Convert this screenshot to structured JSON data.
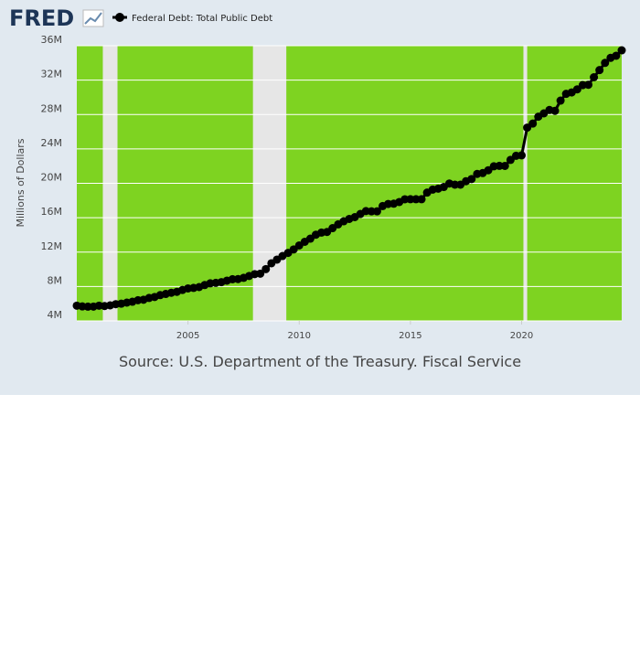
{
  "logo": "FRED",
  "chart_data": {
    "type": "line",
    "y_label": "Millions of Dollars",
    "source": "Source: U.S. Department of the Treasury. Fiscal Service",
    "x": [
      2000,
      2000.25,
      2000.5,
      2000.75,
      2001,
      2001.25,
      2001.5,
      2001.75,
      2002,
      2002.25,
      2002.5,
      2002.75,
      2003,
      2003.25,
      2003.5,
      2003.75,
      2004,
      2004.25,
      2004.5,
      2004.75,
      2005,
      2005.25,
      2005.5,
      2005.75,
      2006,
      2006.25,
      2006.5,
      2006.75,
      2007,
      2007.25,
      2007.5,
      2007.75,
      2008,
      2008.25,
      2008.5,
      2008.75,
      2009,
      2009.25,
      2009.5,
      2009.75,
      2010,
      2010.25,
      2010.5,
      2010.75,
      2011,
      2011.25,
      2011.5,
      2011.75,
      2012,
      2012.25,
      2012.5,
      2012.75,
      2013,
      2013.25,
      2013.5,
      2013.75,
      2014,
      2014.25,
      2014.5,
      2014.75,
      2015,
      2015.25,
      2015.5,
      2015.75,
      2016,
      2016.25,
      2016.5,
      2016.75,
      2017,
      2017.25,
      2017.5,
      2017.75,
      2018,
      2018.25,
      2018.5,
      2018.75,
      2019,
      2019.25,
      2019.5,
      2019.75,
      2020,
      2020.25,
      2020.5,
      2020.75,
      2021,
      2021.25,
      2021.5,
      2021.75,
      2022,
      2022.25,
      2022.5,
      2022.75,
      2023,
      2023.25,
      2023.5,
      2023.75,
      2024,
      2024.25,
      2024.5
    ],
    "series": [
      {
        "name": "Federal Debt: Total Public Debt",
        "color": "#000000",
        "values": [
          5773000,
          5685000,
          5656000,
          5662000,
          5774000,
          5727000,
          5807000,
          5943000,
          6006000,
          6126000,
          6228000,
          6405000,
          6460000,
          6670000,
          6783000,
          6998000,
          7131000,
          7274000,
          7379000,
          7596000,
          7777000,
          7836000,
          7933000,
          8170000,
          8371000,
          8420000,
          8507000,
          8680000,
          8849000,
          8867000,
          9008000,
          9229000,
          9437000,
          9492000,
          10025000,
          10700000,
          11127000,
          11545000,
          11910000,
          12311000,
          12773000,
          13202000,
          13562000,
          14025000,
          14270000,
          14343000,
          14790000,
          15223000,
          15582000,
          15856000,
          16066000,
          16433000,
          16771000,
          16738000,
          16738000,
          17352000,
          17601000,
          17632000,
          17824000,
          18141000,
          18152000,
          18152000,
          18151000,
          18922000,
          19264000,
          19381000,
          19573000,
          19977000,
          19847000,
          19845000,
          20245000,
          20493000,
          21090000,
          21195000,
          21516000,
          21974000,
          22028000,
          22023000,
          22719000,
          23201000,
          23250000,
          26477000,
          26945000,
          27748000,
          28133000,
          28529000,
          28428000,
          29617000,
          30401000,
          30568000,
          30929000,
          31420000,
          31458000,
          32332000,
          33167000,
          34001000,
          34587000,
          34832000,
          35464000
        ]
      }
    ],
    "recessions": [
      [
        2001.17,
        2001.83
      ],
      [
        2007.92,
        2009.42
      ],
      [
        2020.08,
        2020.25
      ]
    ],
    "xlim": [
      2000,
      2024.5
    ],
    "xticks": [
      2005,
      2010,
      2015,
      2020
    ],
    "ylim": [
      4000000,
      36000000
    ],
    "yticks": [
      {
        "value": 4000000,
        "label": "4M"
      },
      {
        "value": 8000000,
        "label": "8M"
      },
      {
        "value": 12000000,
        "label": "12M"
      },
      {
        "value": 16000000,
        "label": "16M"
      },
      {
        "value": 20000000,
        "label": "20M"
      },
      {
        "value": 24000000,
        "label": "24M"
      },
      {
        "value": 28000000,
        "label": "28M"
      },
      {
        "value": 32000000,
        "label": "32M"
      },
      {
        "value": 36000000,
        "label": "36M"
      }
    ],
    "grid": true,
    "plot_color": "#7ed321",
    "recession_color": "#e6e6e6"
  }
}
